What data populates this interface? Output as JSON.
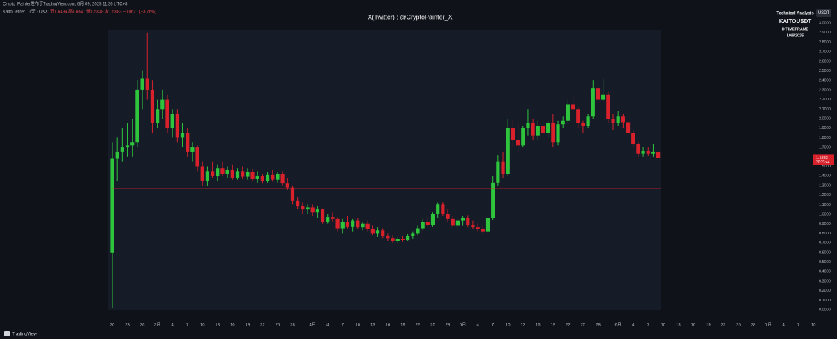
{
  "header": {
    "publisher": "Crypto_Painter发布于TradingView.com, 6月 09, 2025 11:36 UTC+8",
    "symbol": "Kaito/Tether · 1天 · OKX",
    "ohlc_text": "开1.6494 高1.6641 低1.5838 收1.5883 −0.0621 (−3.76%)"
  },
  "watermark": {
    "line1": "Technical Analysis",
    "line2": "KAITOUSDT",
    "line3": "D TIMEFRAME",
    "line4": "10/6/2025"
  },
  "currency": "USDT",
  "footer": "TradingView",
  "chart_data": {
    "type": "candlestick",
    "title": "X(Twitter) : @CryptoPainter_X",
    "up_color": "#2ec43c",
    "down_color": "#d8212b",
    "last_price_label": "1.5883",
    "countdown": "20:23:44",
    "hline": 1.27,
    "hline_color": "#e0222e",
    "ylim": [
      0,
      3
    ],
    "grid": false,
    "yticks": [
      {
        "value": 0,
        "label": "0.0000"
      },
      {
        "value": 0.1,
        "label": "0.1000"
      },
      {
        "value": 0.2,
        "label": "0.2000"
      },
      {
        "value": 0.3,
        "label": "0.3000"
      },
      {
        "value": 0.4,
        "label": "0.4000"
      },
      {
        "value": 0.5,
        "label": "0.5000"
      },
      {
        "value": 0.6,
        "label": "0.6000"
      },
      {
        "value": 0.7,
        "label": "0.7000"
      },
      {
        "value": 0.8,
        "label": "0.8000"
      },
      {
        "value": 0.9,
        "label": "0.9000"
      },
      {
        "value": 1,
        "label": "1.0000"
      },
      {
        "value": 1.1,
        "label": "1.1000"
      },
      {
        "value": 1.2,
        "label": "1.2000"
      },
      {
        "value": 1.3,
        "label": "1.3000"
      },
      {
        "value": 1.4,
        "label": "1.4000"
      },
      {
        "value": 1.5,
        "label": "1.5000"
      },
      {
        "value": 1.6,
        "label": "1.6000"
      },
      {
        "value": 1.7,
        "label": "1.7000"
      },
      {
        "value": 1.8,
        "label": "1.8000"
      },
      {
        "value": 1.9,
        "label": "1.9000"
      },
      {
        "value": 2,
        "label": "2.0000"
      },
      {
        "value": 2.1,
        "label": "2.1000"
      },
      {
        "value": 2.2,
        "label": "2.2000"
      },
      {
        "value": 2.3,
        "label": "2.3000"
      },
      {
        "value": 2.4,
        "label": "2.4000"
      },
      {
        "value": 2.5,
        "label": "2.5000"
      },
      {
        "value": 2.6,
        "label": "2.6000"
      },
      {
        "value": 2.7,
        "label": "2.7000"
      },
      {
        "value": 2.8,
        "label": "2.8000"
      },
      {
        "value": 2.9,
        "label": "2.9000"
      },
      {
        "value": 3,
        "label": "3.0000"
      }
    ],
    "categories": [
      "20",
      null,
      null,
      "23",
      null,
      null,
      "26",
      null,
      null,
      "3月",
      null,
      null,
      "4",
      null,
      null,
      "7",
      null,
      null,
      "10",
      null,
      null,
      "13",
      null,
      null,
      "16",
      null,
      null,
      "19",
      null,
      null,
      "22",
      null,
      null,
      "25",
      null,
      null,
      "28",
      null,
      null,
      null,
      "4月",
      null,
      null,
      "4",
      null,
      null,
      "7",
      null,
      null,
      "10",
      null,
      null,
      "13",
      null,
      null,
      "16",
      null,
      null,
      "19",
      null,
      null,
      "22",
      null,
      null,
      "25",
      null,
      null,
      "28",
      null,
      null,
      "5月",
      null,
      null,
      "4",
      null,
      null,
      "7",
      null,
      null,
      "10",
      null,
      null,
      "13",
      null,
      null,
      "16",
      null,
      null,
      "19",
      null,
      null,
      "22",
      null,
      null,
      "25",
      null,
      null,
      "28",
      null,
      null,
      null,
      "6月",
      null,
      null,
      "4",
      null,
      null,
      "7",
      null,
      null,
      "10",
      null,
      null,
      "13",
      null,
      null,
      "16",
      null,
      null,
      "19",
      null,
      null,
      "22",
      null,
      null,
      "25",
      null,
      null,
      "28",
      null,
      null,
      "7月",
      null,
      null,
      "4",
      null,
      null,
      "7",
      null,
      null,
      "10"
    ],
    "candles": [
      [
        0.6,
        1.75,
        0.02,
        1.58
      ],
      [
        1.58,
        1.8,
        1.35,
        1.65
      ],
      [
        1.65,
        1.9,
        1.55,
        1.7
      ],
      [
        1.7,
        1.95,
        1.6,
        1.72
      ],
      [
        1.72,
        2.0,
        1.6,
        1.75
      ],
      [
        1.75,
        2.4,
        1.7,
        2.3
      ],
      [
        2.3,
        2.5,
        2.1,
        2.42
      ],
      [
        2.42,
        2.9,
        2.2,
        2.3
      ],
      [
        2.3,
        2.4,
        1.85,
        1.95
      ],
      [
        1.95,
        2.2,
        1.9,
        2.1
      ],
      [
        2.1,
        2.3,
        2.0,
        2.2
      ],
      [
        2.2,
        2.25,
        1.85,
        1.9
      ],
      [
        1.9,
        2.1,
        1.8,
        2.05
      ],
      [
        2.05,
        2.1,
        1.75,
        1.8
      ],
      [
        1.8,
        1.95,
        1.7,
        1.85
      ],
      [
        1.85,
        1.9,
        1.6,
        1.65
      ],
      [
        1.65,
        1.75,
        1.55,
        1.7
      ],
      [
        1.7,
        1.72,
        1.45,
        1.5
      ],
      [
        1.5,
        1.55,
        1.3,
        1.35
      ],
      [
        1.35,
        1.5,
        1.3,
        1.45
      ],
      [
        1.45,
        1.55,
        1.38,
        1.4
      ],
      [
        1.4,
        1.52,
        1.35,
        1.48
      ],
      [
        1.48,
        1.55,
        1.4,
        1.42
      ],
      [
        1.42,
        1.5,
        1.38,
        1.46
      ],
      [
        1.46,
        1.52,
        1.36,
        1.38
      ],
      [
        1.38,
        1.48,
        1.36,
        1.45
      ],
      [
        1.45,
        1.5,
        1.37,
        1.39
      ],
      [
        1.39,
        1.48,
        1.36,
        1.44
      ],
      [
        1.44,
        1.47,
        1.35,
        1.37
      ],
      [
        1.37,
        1.45,
        1.33,
        1.4
      ],
      [
        1.4,
        1.42,
        1.32,
        1.35
      ],
      [
        1.35,
        1.44,
        1.33,
        1.41
      ],
      [
        1.41,
        1.46,
        1.34,
        1.36
      ],
      [
        1.36,
        1.44,
        1.33,
        1.42
      ],
      [
        1.42,
        1.45,
        1.3,
        1.32
      ],
      [
        1.32,
        1.38,
        1.25,
        1.28
      ],
      [
        1.28,
        1.3,
        1.1,
        1.14
      ],
      [
        1.14,
        1.18,
        1.05,
        1.08
      ],
      [
        1.08,
        1.12,
        1.0,
        1.05
      ],
      [
        1.05,
        1.1,
        1.0,
        1.07
      ],
      [
        1.07,
        1.1,
        0.98,
        1.02
      ],
      [
        1.02,
        1.08,
        0.96,
        1.05
      ],
      [
        1.05,
        1.06,
        0.9,
        0.92
      ],
      [
        0.92,
        1.0,
        0.9,
        0.97
      ],
      [
        0.97,
        1.02,
        0.92,
        0.95
      ],
      [
        0.95,
        0.97,
        0.82,
        0.85
      ],
      [
        0.85,
        0.95,
        0.8,
        0.92
      ],
      [
        0.92,
        0.98,
        0.85,
        0.87
      ],
      [
        0.87,
        0.95,
        0.82,
        0.93
      ],
      [
        0.93,
        0.96,
        0.84,
        0.86
      ],
      [
        0.86,
        0.92,
        0.83,
        0.9
      ],
      [
        0.9,
        0.93,
        0.82,
        0.84
      ],
      [
        0.84,
        0.88,
        0.78,
        0.8
      ],
      [
        0.8,
        0.86,
        0.76,
        0.83
      ],
      [
        0.83,
        0.85,
        0.75,
        0.77
      ],
      [
        0.77,
        0.8,
        0.72,
        0.75
      ],
      [
        0.75,
        0.78,
        0.7,
        0.72
      ],
      [
        0.72,
        0.76,
        0.7,
        0.74
      ],
      [
        0.74,
        0.77,
        0.71,
        0.73
      ],
      [
        0.73,
        0.79,
        0.72,
        0.77
      ],
      [
        0.77,
        0.82,
        0.74,
        0.8
      ],
      [
        0.8,
        0.88,
        0.78,
        0.85
      ],
      [
        0.85,
        0.95,
        0.83,
        0.92
      ],
      [
        0.92,
        0.97,
        0.86,
        0.89
      ],
      [
        0.89,
        1.02,
        0.87,
        1.0
      ],
      [
        1.0,
        1.12,
        0.96,
        1.1
      ],
      [
        1.1,
        1.13,
        0.98,
        1.0
      ],
      [
        1.0,
        1.05,
        0.92,
        0.95
      ],
      [
        0.95,
        0.98,
        0.86,
        0.88
      ],
      [
        0.88,
        0.96,
        0.85,
        0.93
      ],
      [
        0.93,
        0.98,
        0.88,
        0.96
      ],
      [
        0.96,
        0.99,
        0.87,
        0.89
      ],
      [
        0.89,
        0.93,
        0.84,
        0.86
      ],
      [
        0.86,
        0.9,
        0.82,
        0.84
      ],
      [
        0.84,
        0.88,
        0.8,
        0.82
      ],
      [
        0.82,
        0.98,
        0.8,
        0.96
      ],
      [
        0.96,
        1.4,
        0.94,
        1.33
      ],
      [
        1.33,
        1.62,
        1.3,
        1.55
      ],
      [
        1.55,
        1.65,
        1.38,
        1.42
      ],
      [
        1.42,
        2.0,
        1.4,
        1.9
      ],
      [
        1.9,
        2.0,
        1.7,
        1.78
      ],
      [
        1.78,
        1.95,
        1.65,
        1.72
      ],
      [
        1.72,
        1.92,
        1.7,
        1.9
      ],
      [
        1.9,
        2.1,
        1.82,
        1.95
      ],
      [
        1.95,
        2.0,
        1.78,
        1.82
      ],
      [
        1.82,
        1.98,
        1.78,
        1.92
      ],
      [
        1.92,
        1.95,
        1.8,
        1.85
      ],
      [
        1.85,
        1.98,
        1.8,
        1.95
      ],
      [
        1.95,
        2.05,
        1.7,
        1.75
      ],
      [
        1.75,
        1.98,
        1.72,
        1.94
      ],
      [
        1.94,
        2.02,
        1.9,
        1.98
      ],
      [
        1.98,
        2.2,
        1.95,
        2.15
      ],
      [
        2.15,
        2.25,
        2.05,
        2.1
      ],
      [
        2.1,
        2.12,
        1.9,
        1.95
      ],
      [
        1.95,
        1.98,
        1.85,
        1.92
      ],
      [
        1.92,
        2.05,
        1.9,
        2.02
      ],
      [
        2.02,
        2.4,
        2.0,
        2.32
      ],
      [
        2.32,
        2.4,
        2.15,
        2.2
      ],
      [
        2.2,
        2.42,
        2.18,
        2.25
      ],
      [
        2.25,
        2.28,
        1.95,
        2.0
      ],
      [
        2.0,
        2.05,
        1.88,
        1.95
      ],
      [
        1.95,
        2.08,
        1.92,
        2.02
      ],
      [
        2.02,
        2.05,
        1.9,
        1.96
      ],
      [
        1.96,
        1.98,
        1.82,
        1.85
      ],
      [
        1.85,
        1.88,
        1.7,
        1.73
      ],
      [
        1.73,
        1.76,
        1.6,
        1.63
      ],
      [
        1.63,
        1.7,
        1.6,
        1.66
      ],
      [
        1.66,
        1.7,
        1.61,
        1.63
      ],
      [
        1.63,
        1.73,
        1.6,
        1.65
      ],
      [
        1.6494,
        1.6641,
        1.5838,
        1.5883
      ],
      null,
      null,
      null,
      null,
      null,
      null,
      null,
      null,
      null,
      null,
      null,
      null,
      null,
      null,
      null,
      null,
      null,
      null,
      null,
      null,
      null,
      null,
      null,
      null,
      null,
      null,
      null,
      null,
      null,
      null,
      null
    ]
  }
}
